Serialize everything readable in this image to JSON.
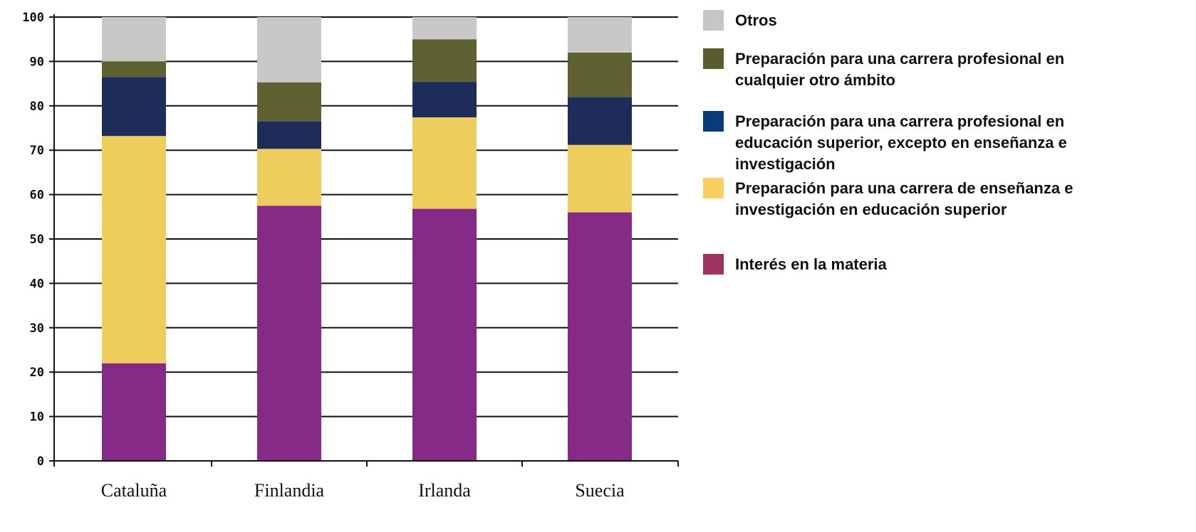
{
  "chart_data": {
    "type": "bar",
    "stacked": true,
    "categories": [
      "Cataluña",
      "Finlandia",
      "Irlanda",
      "Suecia"
    ],
    "ylim": [
      0,
      100
    ],
    "yticks": [
      "0",
      "10",
      "20",
      "30",
      "40",
      "50",
      "60",
      "70",
      "80",
      "90",
      "100"
    ],
    "grid": true,
    "legend_position": "right",
    "series": [
      {
        "name": "Interés en la materia",
        "color": "#852a87",
        "values": [
          22,
          57.5,
          56.8,
          56
        ]
      },
      {
        "name": "Preparación para una carrera de enseñanza e investigación en educación superior",
        "color": "#efcd5d",
        "values": [
          51.2,
          12.8,
          20.6,
          15.2
        ]
      },
      {
        "name": "Preparación para una carrera profesional en educación superior, excepto en enseñanza e investigación",
        "color": "#1e2c5c",
        "values": [
          13.3,
          6.2,
          8,
          10.8
        ]
      },
      {
        "name": "Preparación para una carrera profesional en cualquier otro ámbito",
        "color": "#606133",
        "values": [
          3.5,
          8.8,
          9.6,
          10
        ]
      },
      {
        "name": "Otros",
        "color": "#c8c8c8",
        "values": [
          10,
          14.7,
          5,
          8
        ]
      }
    ]
  },
  "legend": [
    {
      "lines": [
        "Otros"
      ],
      "swatch": "#c6c6c6"
    },
    {
      "lines": [
        "Preparación para una carrera profesional en",
        "cualquier otro ámbito"
      ],
      "swatch": "#5a5c2c"
    },
    {
      "lines": [
        "Preparación para una carrera profesional en",
        "educación superior, excepto en enseñanza e",
        "investigación"
      ],
      "swatch": "#0a3a7a"
    },
    {
      "lines": [
        "Preparación para una carrera de enseñanza e",
        "investigación en educación superior"
      ],
      "swatch": "#f9d060"
    },
    {
      "lines": [
        "Interés en la materia"
      ],
      "swatch": "#9d3363"
    }
  ]
}
